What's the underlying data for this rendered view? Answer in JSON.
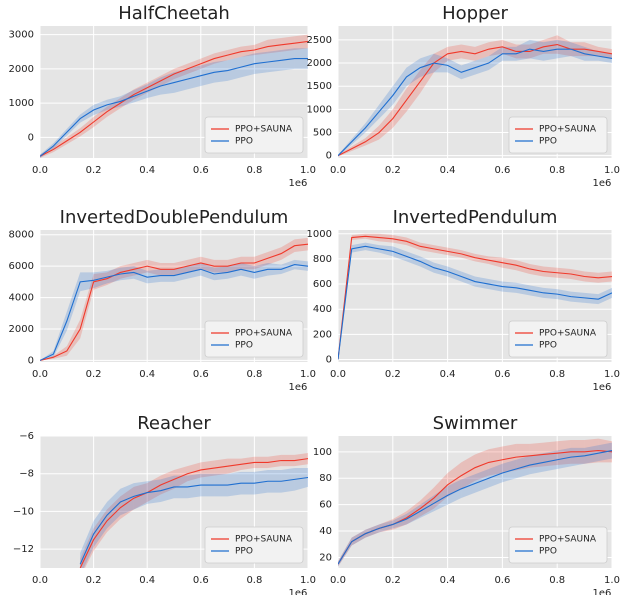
{
  "chart_data": [
    {
      "type": "line",
      "title": "HalfCheetah",
      "x_offset_label": "1e6",
      "legend_loc": "lower right",
      "grid": true,
      "x": [
        0,
        0.05,
        0.1,
        0.15,
        0.2,
        0.25,
        0.3,
        0.35,
        0.4,
        0.45,
        0.5,
        0.55,
        0.6,
        0.65,
        0.7,
        0.75,
        0.8,
        0.85,
        0.9,
        0.95,
        1.0
      ],
      "xlim": [
        0,
        1
      ],
      "xticks": [
        {
          "value": 0,
          "label": "0.0"
        },
        0.2,
        0.4,
        0.6,
        0.8,
        {
          "value": 1,
          "label": "1.0"
        }
      ],
      "ylim": [
        -600,
        3250
      ],
      "yticks": [
        0,
        1000,
        2000,
        3000
      ],
      "series": [
        {
          "name": "PPO+SAUNA",
          "color": "#f0392b",
          "values": [
            -550,
            -350,
            -100,
            150,
            450,
            750,
            1000,
            1250,
            1450,
            1650,
            1850,
            2000,
            2150,
            2300,
            2400,
            2500,
            2550,
            2650,
            2700,
            2750,
            2800
          ],
          "errors": [
            50,
            80,
            100,
            120,
            150,
            150,
            150,
            150,
            150,
            150,
            150,
            150,
            150,
            150,
            150,
            150,
            150,
            200,
            200,
            200,
            200
          ]
        },
        {
          "name": "PPO",
          "color": "#1f6fd0",
          "values": [
            -550,
            -250,
            150,
            550,
            800,
            950,
            1050,
            1200,
            1350,
            1500,
            1600,
            1700,
            1800,
            1900,
            1950,
            2050,
            2150,
            2200,
            2250,
            2300,
            2300
          ],
          "errors": [
            50,
            80,
            100,
            120,
            150,
            150,
            150,
            180,
            200,
            250,
            300,
            300,
            300,
            300,
            300,
            300,
            300,
            300,
            300,
            300,
            300
          ]
        }
      ]
    },
    {
      "type": "line",
      "title": "Hopper",
      "x_offset_label": "1e6",
      "legend_loc": "lower right",
      "grid": true,
      "x": [
        0,
        0.05,
        0.1,
        0.15,
        0.2,
        0.25,
        0.3,
        0.35,
        0.4,
        0.45,
        0.5,
        0.55,
        0.6,
        0.65,
        0.7,
        0.75,
        0.8,
        0.85,
        0.9,
        0.95,
        1.0
      ],
      "xlim": [
        0,
        1
      ],
      "xticks": [
        {
          "value": 0,
          "label": "0.0"
        },
        0.2,
        0.4,
        0.6,
        0.8,
        {
          "value": 1,
          "label": "1.0"
        }
      ],
      "ylim": [
        -50,
        2800
      ],
      "yticks": [
        0,
        500,
        1000,
        1500,
        2000,
        2500
      ],
      "series": [
        {
          "name": "PPO+SAUNA",
          "color": "#f0392b",
          "values": [
            0,
            150,
            300,
            500,
            800,
            1200,
            1600,
            2000,
            2200,
            2250,
            2200,
            2300,
            2350,
            2250,
            2250,
            2350,
            2400,
            2300,
            2300,
            2250,
            2200
          ],
          "errors": [
            20,
            50,
            80,
            150,
            200,
            250,
            250,
            200,
            150,
            150,
            150,
            150,
            150,
            150,
            150,
            150,
            200,
            150,
            150,
            100,
            100
          ]
        },
        {
          "name": "PPO",
          "color": "#1f6fd0",
          "values": [
            0,
            300,
            600,
            950,
            1300,
            1700,
            1900,
            2000,
            1950,
            1800,
            1900,
            2000,
            2200,
            2200,
            2300,
            2250,
            2300,
            2300,
            2200,
            2150,
            2100
          ],
          "errors": [
            20,
            60,
            100,
            150,
            200,
            200,
            200,
            200,
            150,
            150,
            150,
            150,
            150,
            150,
            200,
            200,
            200,
            150,
            150,
            100,
            100
          ]
        }
      ]
    },
    {
      "type": "line",
      "title": "InvertedDoublePendulum",
      "x_offset_label": "1e6",
      "legend_loc": "lower right",
      "grid": true,
      "x": [
        0,
        0.05,
        0.1,
        0.15,
        0.2,
        0.25,
        0.3,
        0.35,
        0.4,
        0.45,
        0.5,
        0.55,
        0.6,
        0.65,
        0.7,
        0.75,
        0.8,
        0.85,
        0.9,
        0.95,
        1.0
      ],
      "xlim": [
        0,
        1
      ],
      "xticks": [
        {
          "value": 0,
          "label": "0.0"
        },
        0.2,
        0.4,
        0.6,
        0.8,
        {
          "value": 1,
          "label": "1.0"
        }
      ],
      "ylim": [
        -100,
        8300
      ],
      "yticks": [
        0,
        2000,
        4000,
        6000,
        8000
      ],
      "series": [
        {
          "name": "PPO+SAUNA",
          "color": "#f0392b",
          "values": [
            0,
            200,
            600,
            2000,
            5000,
            5200,
            5600,
            5800,
            6000,
            5800,
            5800,
            6000,
            6200,
            6000,
            6000,
            6200,
            6200,
            6500,
            6800,
            7300,
            7400
          ],
          "errors": [
            0,
            100,
            300,
            600,
            500,
            400,
            400,
            400,
            400,
            400,
            400,
            400,
            400,
            400,
            400,
            400,
            400,
            400,
            400,
            400,
            400
          ]
        },
        {
          "name": "PPO",
          "color": "#1f6fd0",
          "values": [
            0,
            400,
            2500,
            5000,
            5100,
            5300,
            5500,
            5600,
            5300,
            5400,
            5400,
            5600,
            5800,
            5500,
            5600,
            5800,
            5600,
            5800,
            5800,
            6100,
            6000
          ],
          "errors": [
            0,
            200,
            600,
            600,
            500,
            400,
            400,
            400,
            400,
            400,
            400,
            400,
            400,
            400,
            400,
            400,
            400,
            400,
            300,
            300,
            300
          ]
        }
      ]
    },
    {
      "type": "line",
      "title": "InvertedPendulum",
      "x_offset_label": "1e6",
      "legend_loc": "lower right",
      "grid": true,
      "x": [
        0,
        0.05,
        0.1,
        0.15,
        0.2,
        0.25,
        0.3,
        0.35,
        0.4,
        0.45,
        0.5,
        0.55,
        0.6,
        0.65,
        0.7,
        0.75,
        0.8,
        0.85,
        0.9,
        0.95,
        1.0
      ],
      "xlim": [
        0,
        1
      ],
      "xticks": [
        {
          "value": 0,
          "label": "0.0"
        },
        0.2,
        0.4,
        0.6,
        0.8,
        {
          "value": 1,
          "label": "1.0"
        }
      ],
      "ylim": [
        -20,
        1030
      ],
      "yticks": [
        0,
        200,
        400,
        600,
        800,
        1000
      ],
      "series": [
        {
          "name": "PPO+SAUNA",
          "color": "#f0392b",
          "values": [
            0,
            970,
            980,
            970,
            960,
            940,
            900,
            880,
            860,
            840,
            810,
            790,
            770,
            750,
            720,
            700,
            690,
            680,
            660,
            650,
            660
          ],
          "errors": [
            0,
            20,
            20,
            30,
            30,
            30,
            30,
            30,
            30,
            30,
            30,
            30,
            40,
            40,
            40,
            40,
            40,
            40,
            40,
            40,
            40
          ]
        },
        {
          "name": "PPO",
          "color": "#1f6fd0",
          "values": [
            0,
            880,
            900,
            880,
            860,
            820,
            780,
            730,
            700,
            660,
            620,
            600,
            580,
            570,
            550,
            530,
            520,
            500,
            490,
            480,
            530
          ],
          "errors": [
            0,
            30,
            30,
            30,
            40,
            40,
            40,
            40,
            40,
            40,
            40,
            40,
            40,
            40,
            40,
            40,
            40,
            40,
            40,
            40,
            40
          ]
        }
      ]
    },
    {
      "type": "line",
      "title": "Reacher",
      "x_offset_label": "1e6",
      "legend_loc": "lower right",
      "grid": true,
      "x": [
        0,
        0.05,
        0.1,
        0.15,
        0.2,
        0.25,
        0.3,
        0.35,
        0.4,
        0.45,
        0.5,
        0.55,
        0.6,
        0.65,
        0.7,
        0.75,
        0.8,
        0.85,
        0.9,
        0.95,
        1.0
      ],
      "xlim": [
        0,
        1
      ],
      "xticks": [
        {
          "value": 0,
          "label": "0.0"
        },
        0.2,
        0.4,
        0.6,
        0.8,
        {
          "value": 1,
          "label": "1.0"
        }
      ],
      "ylim": [
        -13,
        -6
      ],
      "yticks": [
        {
          "value": -12,
          "label": "−12"
        },
        {
          "value": -10,
          "label": "−10"
        },
        {
          "value": -8,
          "label": "−8"
        },
        {
          "value": -6,
          "label": "−6"
        }
      ],
      "series": [
        {
          "name": "PPO+SAUNA",
          "color": "#f0392b",
          "values": [
            null,
            null,
            null,
            -13,
            -11.5,
            -10.5,
            -9.8,
            -9.3,
            -9.0,
            -8.6,
            -8.3,
            -8.0,
            -7.8,
            -7.7,
            -7.6,
            -7.5,
            -7.4,
            -7.4,
            -7.3,
            -7.3,
            -7.2
          ],
          "errors": [
            null,
            null,
            null,
            0.5,
            0.6,
            0.6,
            0.6,
            0.6,
            0.5,
            0.5,
            0.5,
            0.4,
            0.4,
            0.4,
            0.4,
            0.3,
            0.3,
            0.3,
            0.3,
            0.3,
            0.3
          ]
        },
        {
          "name": "PPO",
          "color": "#1f6fd0",
          "values": [
            null,
            null,
            null,
            -12.8,
            -11.2,
            -10.2,
            -9.5,
            -9.2,
            -9.0,
            -8.9,
            -8.7,
            -8.7,
            -8.6,
            -8.6,
            -8.6,
            -8.5,
            -8.5,
            -8.4,
            -8.4,
            -8.3,
            -8.2
          ],
          "errors": [
            null,
            null,
            null,
            0.6,
            0.7,
            0.7,
            0.7,
            0.7,
            0.6,
            0.6,
            0.6,
            0.6,
            0.6,
            0.6,
            0.6,
            0.6,
            0.6,
            0.6,
            0.6,
            0.6,
            0.5
          ]
        }
      ]
    },
    {
      "type": "line",
      "title": "Swimmer",
      "x_offset_label": "1e6",
      "legend_loc": "lower right",
      "grid": true,
      "x": [
        0,
        0.05,
        0.1,
        0.15,
        0.2,
        0.25,
        0.3,
        0.35,
        0.4,
        0.45,
        0.5,
        0.55,
        0.6,
        0.65,
        0.7,
        0.75,
        0.8,
        0.85,
        0.9,
        0.95,
        1.0
      ],
      "xlim": [
        0,
        1
      ],
      "xticks": [
        {
          "value": 0,
          "label": "0.0"
        },
        0.2,
        0.4,
        0.6,
        0.8,
        {
          "value": 1,
          "label": "1.0"
        }
      ],
      "ylim": [
        12,
        112
      ],
      "yticks": [
        20,
        40,
        60,
        80,
        100
      ],
      "series": [
        {
          "name": "PPO+SAUNA",
          "color": "#f0392b",
          "values": [
            15,
            32,
            38,
            42,
            45,
            50,
            57,
            65,
            75,
            82,
            88,
            92,
            94,
            96,
            97,
            98,
            99,
            100,
            100,
            101,
            100
          ],
          "errors": [
            2,
            3,
            3,
            3,
            4,
            5,
            6,
            8,
            9,
            10,
            10,
            10,
            10,
            10,
            9,
            9,
            9,
            9,
            9,
            9,
            8
          ]
        },
        {
          "name": "PPO",
          "color": "#1f6fd0",
          "values": [
            15,
            32,
            38,
            42,
            45,
            49,
            55,
            61,
            67,
            72,
            76,
            80,
            84,
            87,
            90,
            92,
            94,
            96,
            97,
            99,
            101
          ],
          "errors": [
            2,
            3,
            3,
            3,
            3,
            4,
            5,
            6,
            7,
            7,
            7,
            7,
            7,
            7,
            7,
            7,
            7,
            7,
            6,
            6,
            6
          ]
        }
      ]
    }
  ]
}
